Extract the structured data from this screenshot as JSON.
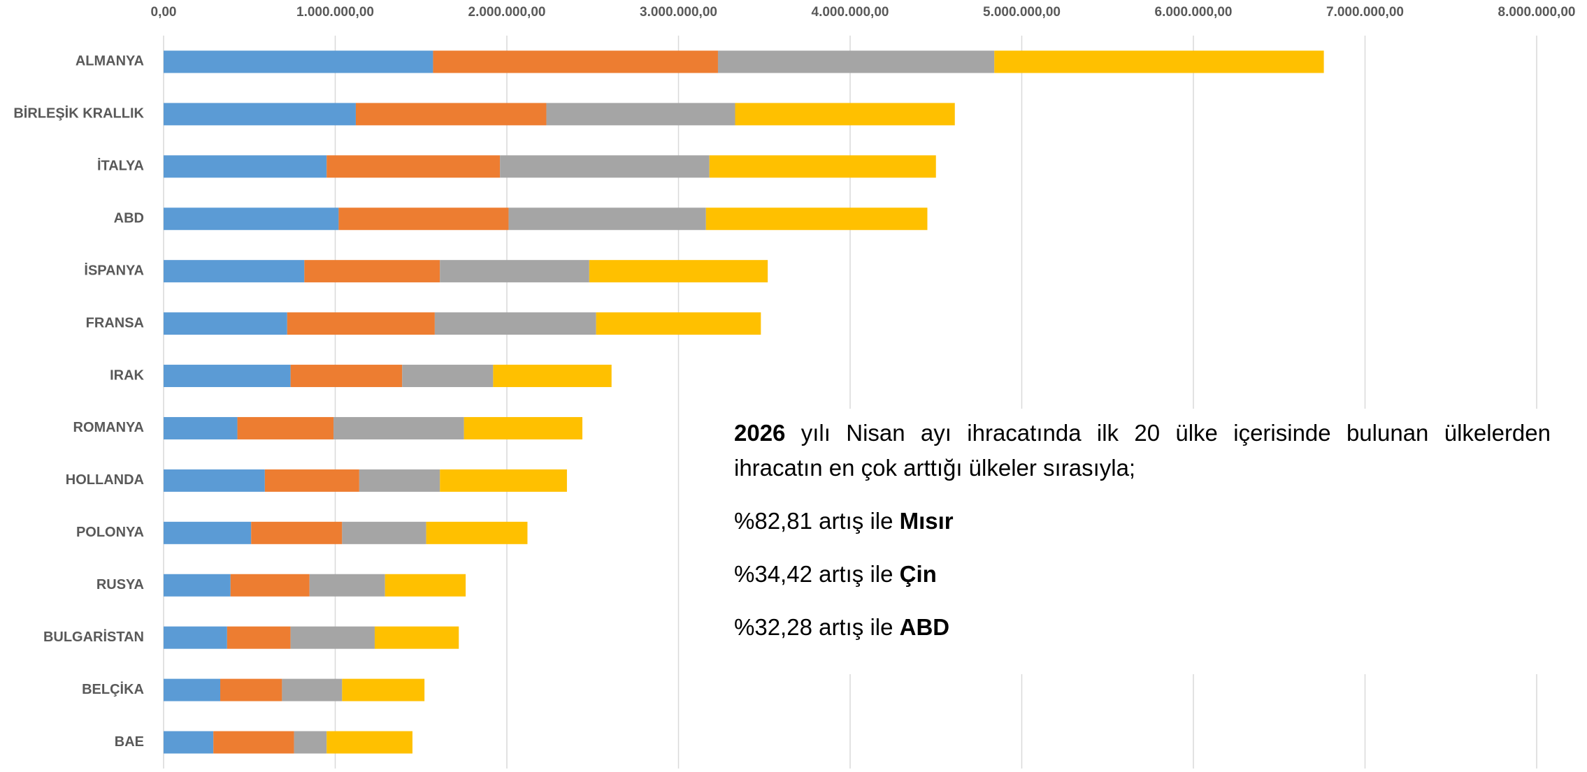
{
  "chart_data": {
    "type": "stacked_barh",
    "categories": [
      "ALMANYA",
      "BİRLEŞİK KRALLIK",
      "İTALYA",
      "ABD",
      "İSPANYA",
      "FRANSA",
      "IRAK",
      "ROMANYA",
      "HOLLANDA",
      "POLONYA",
      "RUSYA",
      "BULGARİSTAN",
      "BELÇİKA",
      "BAE"
    ],
    "series": [
      {
        "color": "#5b9bd5",
        "values": [
          1570000,
          1120000,
          950000,
          1020000,
          820000,
          720000,
          740000,
          430000,
          590000,
          510000,
          390000,
          370000,
          330000,
          290000
        ]
      },
      {
        "color": "#ed7d31",
        "values": [
          1660000,
          1110000,
          1010000,
          990000,
          790000,
          860000,
          650000,
          560000,
          550000,
          530000,
          460000,
          370000,
          360000,
          470000
        ]
      },
      {
        "color": "#a5a5a5",
        "values": [
          1610000,
          1100000,
          1220000,
          1150000,
          870000,
          940000,
          530000,
          760000,
          470000,
          490000,
          440000,
          490000,
          350000,
          190000
        ]
      },
      {
        "color": "#ffc000",
        "values": [
          1920000,
          1280000,
          1320000,
          1290000,
          1040000,
          960000,
          690000,
          690000,
          740000,
          590000,
          470000,
          490000,
          480000,
          500000
        ]
      }
    ],
    "xlim": [
      0,
      8000000
    ],
    "xticks": [
      {
        "value": 0,
        "label": "0,00"
      },
      {
        "value": 1000000,
        "label": "1.000.000,00"
      },
      {
        "value": 2000000,
        "label": "2.000.000,00"
      },
      {
        "value": 3000000,
        "label": "3.000.000,00"
      },
      {
        "value": 4000000,
        "label": "4.000.000,00"
      },
      {
        "value": 5000000,
        "label": "5.000.000,00"
      },
      {
        "value": 6000000,
        "label": "6.000.000,00"
      },
      {
        "value": 7000000,
        "label": "7.000.000,00"
      },
      {
        "value": 8000000,
        "label": "8.000.000,00"
      }
    ],
    "grid": true,
    "annotation": {
      "paragraph": {
        "bold": "2026",
        "text": " yılı Nisan ayı ihracatında ilk 20 ülke içerisinde bulunan ülkelerden ihracatın en çok arttığı ülkeler sırasıyla;"
      },
      "lines": [
        {
          "text": "%82,81 artış ile ",
          "bold": "Mısır"
        },
        {
          "text": "%34,42 artış ile ",
          "bold": "Çin"
        },
        {
          "text": "%32,28 artış ile ",
          "bold": "ABD"
        }
      ]
    }
  }
}
